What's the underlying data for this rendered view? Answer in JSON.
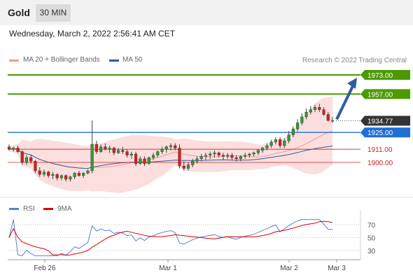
{
  "header": {
    "instrument": "Gold",
    "timeframe": "30 MIN"
  },
  "datetime": "Wednesday, March 2, 2022 2:56:41 AM CET",
  "legend": {
    "ma20": {
      "label": "MA 20 + Bollinger Bands",
      "color": "#f29a94"
    },
    "ma50": {
      "label": "MA 50",
      "color": "#2d5c9e"
    }
  },
  "credit": "Research © 2022 Trading Central",
  "levels": [
    {
      "label": "1973.00",
      "value": 1973.0,
      "kind": "resistance",
      "color": "#4c9a00"
    },
    {
      "label": "1957.00",
      "value": 1957.0,
      "kind": "resistance",
      "color": "#4c9a00"
    },
    {
      "label": "1934.77",
      "value": 1934.77,
      "kind": "last",
      "color": "#333333"
    },
    {
      "label": "1925.00",
      "value": 1925.0,
      "kind": "pivot",
      "color": "#1f6fd6"
    },
    {
      "label": "1911.00",
      "value": 1911.0,
      "kind": "support",
      "color": "#cc2222"
    },
    {
      "label": "1900.00",
      "value": 1900.0,
      "kind": "support",
      "color": "#cc2222"
    }
  ],
  "rsi_legend": {
    "rsi": {
      "label": "RSI",
      "color": "#5b7fd6"
    },
    "ma9": {
      "label": "9MA",
      "color": "#e00000"
    }
  },
  "rsi_levels": [
    "70",
    "50",
    "30"
  ],
  "x_labels": [
    "Feb 26",
    "Mar 1",
    "Mar 2",
    "Mar 3"
  ],
  "chart_data": {
    "type": "candlestick",
    "ylim": [
      1880,
      1975
    ],
    "rsi_ylim": [
      20,
      80
    ],
    "candles": [
      [
        1913,
        1915,
        1910,
        1911
      ],
      [
        1911,
        1913,
        1909,
        1912
      ],
      [
        1912,
        1914,
        1908,
        1909
      ],
      [
        1909,
        1910,
        1898,
        1900
      ],
      [
        1900,
        1906,
        1898,
        1904
      ],
      [
        1904,
        1906,
        1899,
        1901
      ],
      [
        1901,
        1902,
        1891,
        1893
      ],
      [
        1893,
        1896,
        1888,
        1890
      ],
      [
        1890,
        1894,
        1888,
        1892
      ],
      [
        1892,
        1893,
        1887,
        1889
      ],
      [
        1889,
        1892,
        1886,
        1890
      ],
      [
        1890,
        1891,
        1885,
        1887
      ],
      [
        1887,
        1890,
        1885,
        1889
      ],
      [
        1889,
        1890,
        1884,
        1886
      ],
      [
        1886,
        1889,
        1884,
        1888
      ],
      [
        1888,
        1892,
        1886,
        1891
      ],
      [
        1891,
        1893,
        1888,
        1889
      ],
      [
        1889,
        1892,
        1887,
        1891
      ],
      [
        1891,
        1894,
        1890,
        1893
      ],
      [
        1893,
        1935,
        1891,
        1915
      ],
      [
        1915,
        1918,
        1907,
        1909
      ],
      [
        1909,
        1915,
        1908,
        1913
      ],
      [
        1913,
        1916,
        1910,
        1911
      ],
      [
        1911,
        1914,
        1908,
        1912
      ],
      [
        1912,
        1913,
        1906,
        1908
      ],
      [
        1908,
        1912,
        1907,
        1910
      ],
      [
        1910,
        1913,
        1907,
        1909
      ],
      [
        1909,
        1911,
        1904,
        1906
      ],
      [
        1906,
        1909,
        1903,
        1907
      ],
      [
        1907,
        1909,
        1897,
        1899
      ],
      [
        1899,
        1905,
        1898,
        1903
      ],
      [
        1903,
        1905,
        1897,
        1899
      ],
      [
        1899,
        1905,
        1898,
        1904
      ],
      [
        1904,
        1908,
        1902,
        1906
      ],
      [
        1906,
        1910,
        1904,
        1909
      ],
      [
        1909,
        1913,
        1907,
        1911
      ],
      [
        1911,
        1914,
        1908,
        1913
      ],
      [
        1913,
        1916,
        1910,
        1914
      ],
      [
        1914,
        1916,
        1910,
        1912
      ],
      [
        1912,
        1915,
        1895,
        1897
      ],
      [
        1897,
        1901,
        1893,
        1895
      ],
      [
        1895,
        1900,
        1893,
        1898
      ],
      [
        1898,
        1903,
        1896,
        1901
      ],
      [
        1901,
        1905,
        1899,
        1903
      ],
      [
        1903,
        1907,
        1901,
        1905
      ],
      [
        1905,
        1908,
        1902,
        1906
      ],
      [
        1906,
        1909,
        1903,
        1907
      ],
      [
        1907,
        1910,
        1904,
        1908
      ],
      [
        1908,
        1909,
        1904,
        1906
      ],
      [
        1906,
        1908,
        1902,
        1905
      ],
      [
        1905,
        1908,
        1903,
        1906
      ],
      [
        1906,
        1908,
        1902,
        1904
      ],
      [
        1904,
        1906,
        1901,
        1903
      ],
      [
        1903,
        1906,
        1901,
        1905
      ],
      [
        1905,
        1908,
        1903,
        1906
      ],
      [
        1906,
        1908,
        1904,
        1907
      ],
      [
        1907,
        1909,
        1905,
        1908
      ],
      [
        1908,
        1911,
        1906,
        1910
      ],
      [
        1910,
        1913,
        1908,
        1912
      ],
      [
        1912,
        1916,
        1910,
        1914
      ],
      [
        1914,
        1919,
        1912,
        1917
      ],
      [
        1917,
        1921,
        1915,
        1919
      ],
      [
        1919,
        1921,
        1912,
        1914
      ],
      [
        1914,
        1920,
        1912,
        1918
      ],
      [
        1918,
        1926,
        1916,
        1923
      ],
      [
        1923,
        1930,
        1921,
        1928
      ],
      [
        1928,
        1936,
        1926,
        1933
      ],
      [
        1933,
        1941,
        1931,
        1938
      ],
      [
        1938,
        1945,
        1936,
        1942
      ],
      [
        1942,
        1947,
        1940,
        1944
      ],
      [
        1944,
        1948,
        1942,
        1946
      ],
      [
        1946,
        1949,
        1942,
        1944
      ],
      [
        1944,
        1946,
        1939,
        1940
      ],
      [
        1940,
        1942,
        1934,
        1935
      ],
      [
        1935,
        1938,
        1933,
        1935
      ]
    ]
  }
}
